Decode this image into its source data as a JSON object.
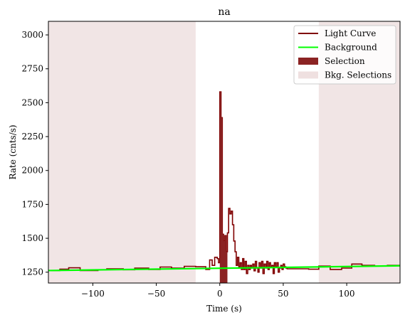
{
  "chart_data": {
    "type": "line",
    "title": "na",
    "xlabel": "Time (s)",
    "ylabel": "Rate (cnts/s)",
    "xlim": [
      -135,
      142
    ],
    "ylim": [
      1170,
      3100
    ],
    "x_ticks": [
      -100,
      -50,
      0,
      50,
      100
    ],
    "x_tick_labels": [
      "−100",
      "−50",
      "0",
      "50",
      "100"
    ],
    "y_ticks": [
      1250,
      1500,
      1750,
      2000,
      2250,
      2500,
      2750,
      3000
    ],
    "y_tick_labels": [
      "1250",
      "1500",
      "1750",
      "2000",
      "2250",
      "2500",
      "2750",
      "3000"
    ],
    "legend_position": "top-right",
    "legend": [
      {
        "label": "Light Curve",
        "kind": "line",
        "color": "#800000"
      },
      {
        "label": "Background",
        "kind": "line",
        "color": "#00ff00"
      },
      {
        "label": "Selection",
        "kind": "patch",
        "color": "#8b2323"
      },
      {
        "label": "Bkg. Selections",
        "kind": "patch",
        "color": "#efe0e0"
      }
    ],
    "bkg_selections": [
      [
        -135,
        -19
      ],
      [
        78,
        142
      ]
    ],
    "selection": [
      0,
      6
    ],
    "background": {
      "x": [
        -135,
        142
      ],
      "y": [
        1262,
        1297
      ]
    },
    "light_curve": {
      "x": [
        -133,
        -126,
        -119,
        -110,
        -96,
        -89,
        -76,
        -67,
        -56,
        -47,
        -38,
        -28,
        -19,
        -11,
        -8,
        -6,
        -4,
        -2,
        -1,
        0,
        1,
        2,
        3,
        4,
        5,
        6,
        7,
        8,
        9,
        10,
        11,
        12,
        13,
        14,
        15,
        16,
        17,
        18,
        19,
        20,
        21,
        22,
        23,
        24,
        25,
        26,
        27,
        28,
        29,
        30,
        31,
        32,
        33,
        34,
        35,
        36,
        37,
        38,
        39,
        40,
        41,
        42,
        43,
        44,
        45,
        46,
        47,
        48,
        49,
        50,
        51,
        52,
        53,
        54,
        55,
        56,
        57,
        58,
        59,
        60,
        61,
        62,
        63,
        64,
        70,
        78,
        87,
        96,
        104,
        112,
        122,
        132,
        142
      ],
      "y": [
        1262,
        1272,
        1282,
        1262,
        1268,
        1275,
        1268,
        1280,
        1270,
        1288,
        1280,
        1293,
        1290,
        1270,
        1340,
        1300,
        1360,
        1350,
        1320,
        2580,
        2390,
        1530,
        1480,
        1520,
        1400,
        1540,
        1720,
        1680,
        1700,
        1600,
        1480,
        1400,
        1300,
        1360,
        1290,
        1320,
        1270,
        1350,
        1270,
        1330,
        1240,
        1300,
        1270,
        1300,
        1280,
        1310,
        1260,
        1330,
        1280,
        1250,
        1320,
        1280,
        1330,
        1240,
        1310,
        1280,
        1330,
        1270,
        1320,
        1290,
        1300,
        1240,
        1320,
        1290,
        1320,
        1250,
        1280,
        1300,
        1270,
        1310,
        1290,
        1280,
        1275,
        1275,
        1275,
        1275,
        1275,
        1275,
        1275,
        1275,
        1275,
        1275,
        1275,
        1275,
        1272,
        1295,
        1270,
        1280,
        1310,
        1300,
        1295,
        1300,
        1300
      ]
    }
  }
}
